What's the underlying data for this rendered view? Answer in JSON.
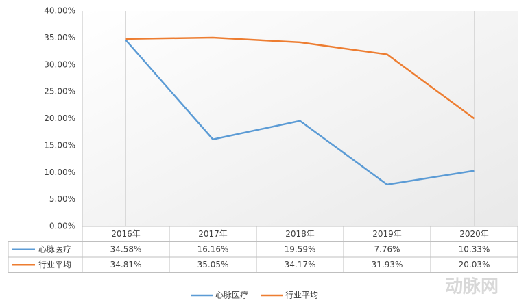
{
  "chart_data": {
    "type": "line",
    "categories": [
      "2016年",
      "2017年",
      "2018年",
      "2019年",
      "2020年"
    ],
    "series": [
      {
        "name": "心脉医疗",
        "color": "#5b9bd5",
        "values": [
          34.58,
          16.16,
          19.59,
          7.76,
          10.33
        ],
        "value_labels": [
          "34.58%",
          "16.16%",
          "19.59%",
          "7.76%",
          "10.33%"
        ]
      },
      {
        "name": "行业平均",
        "color": "#ed7d31",
        "values": [
          34.81,
          35.05,
          34.17,
          31.93,
          20.03
        ],
        "value_labels": [
          "34.81%",
          "35.05%",
          "34.17%",
          "31.93%",
          "20.03%"
        ]
      }
    ],
    "ylim": [
      0,
      40
    ],
    "yticks": [
      {
        "value": 0,
        "label": "0.00%"
      },
      {
        "value": 5,
        "label": "5.00%"
      },
      {
        "value": 10,
        "label": "10.00%"
      },
      {
        "value": 15,
        "label": "15.00%"
      },
      {
        "value": 20,
        "label": "20.00%"
      },
      {
        "value": 25,
        "label": "25.00%"
      },
      {
        "value": 30,
        "label": "30.00%"
      },
      {
        "value": 35,
        "label": "35.00%"
      },
      {
        "value": 40,
        "label": "40.00%"
      }
    ],
    "legend": "bottom",
    "data_table": true,
    "watermark": "动脉网"
  }
}
